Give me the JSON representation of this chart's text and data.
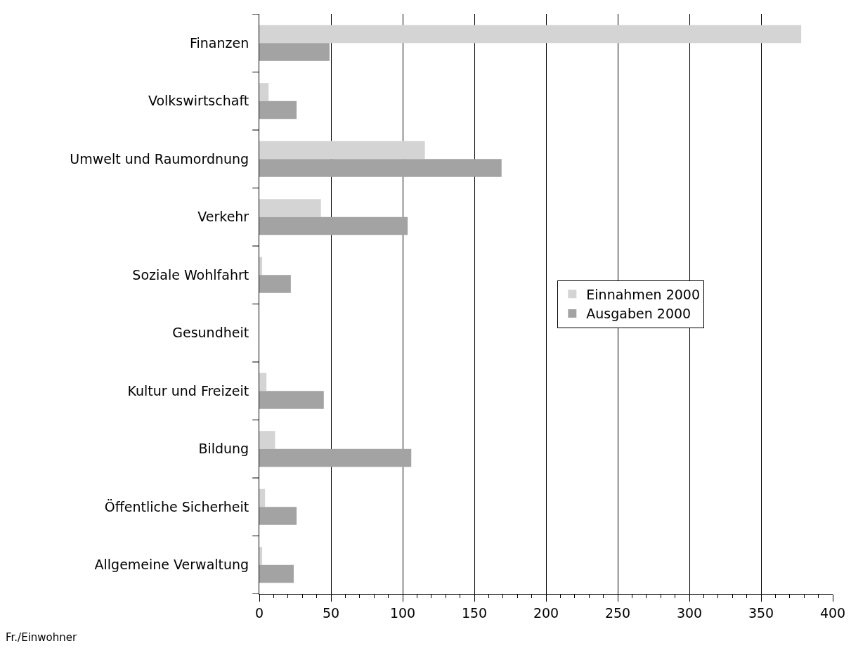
{
  "chart_data": {
    "type": "bar",
    "orientation": "horizontal",
    "categories": [
      "Finanzen",
      "Volkswirtschaft",
      "Umwelt und Raumordnung",
      "Verkehr",
      "Soziale Wohlfahrt",
      "Gesundheit",
      "Kultur und Freizeit",
      "Bildung",
      "Öffentliche Sicherheit",
      "Allgemeine Verwaltung"
    ],
    "series": [
      {
        "name": "Einnahmen 2000",
        "color": "#d4d4d4",
        "values": [
          378,
          6.5,
          115.5,
          43,
          2,
          0,
          5,
          11,
          4,
          2
        ]
      },
      {
        "name": "Ausgaben 2000",
        "color": "#a3a3a3",
        "values": [
          49,
          26,
          169,
          103.5,
          22,
          0,
          45,
          106,
          26,
          24
        ]
      }
    ],
    "xlim": [
      0,
      400
    ],
    "xticks": [
      0,
      50,
      100,
      150,
      200,
      250,
      300,
      350,
      400
    ],
    "grid": "x",
    "legend": "right",
    "annotations": [
      "Fr./Einwohner"
    ]
  }
}
